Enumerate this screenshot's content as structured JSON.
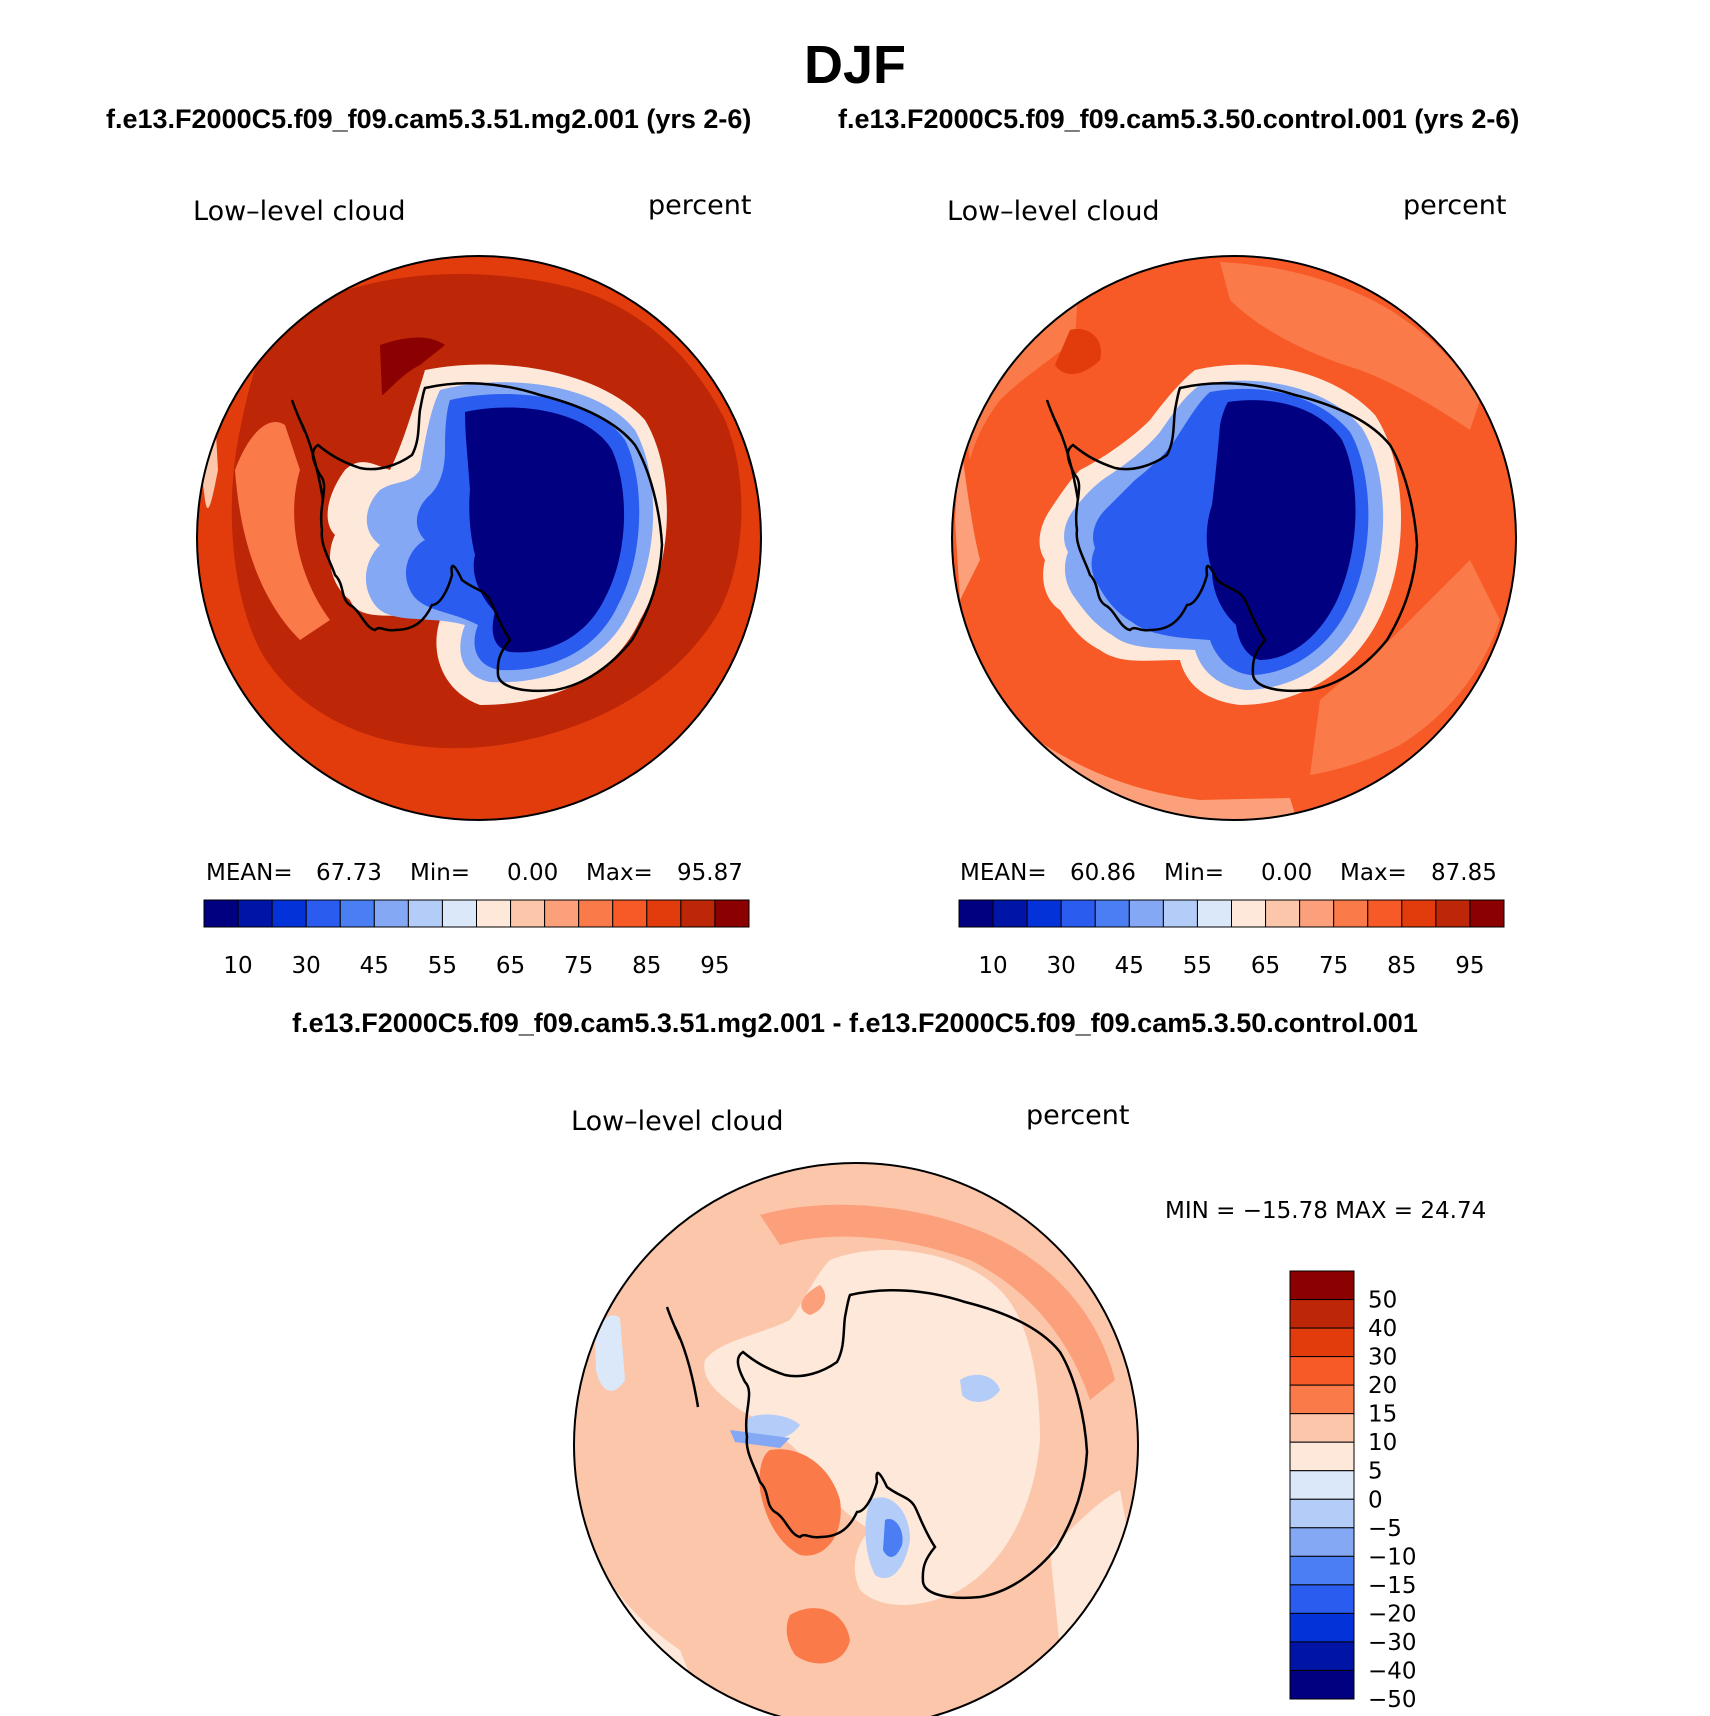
{
  "figure": {
    "season": "DJF",
    "case_title_left": "f.e13.F2000C5.f09_f09.cam5.3.51.mg2.001 (yrs 2-6)",
    "case_title_right": "f.e13.F2000C5.f09_f09.cam5.3.50.control.001 (yrs 2-6)",
    "diff_title": "f.e13.F2000C5.f09_f09.cam5.3.51.mg2.001 - f.e13.F2000C5.f09_f09.cam5.3.50.control.001"
  },
  "panels": {
    "left": {
      "variable": "Low–level cloud",
      "units": "percent",
      "mean_label": "MEAN=",
      "mean": "67.73",
      "min_label": "Min=",
      "min": "0.00",
      "max_label": "Max=",
      "max": "95.87"
    },
    "right": {
      "variable": "Low–level cloud",
      "units": "percent",
      "mean_label": "MEAN=",
      "mean": "60.86",
      "min_label": "Min=",
      "min": "0.00",
      "max_label": "Max=",
      "max": "87.85"
    },
    "diff": {
      "variable": "Low–level cloud",
      "units": "percent",
      "minmax_text": "MIN = −15.78 MAX =   24.74"
    }
  },
  "chart_data": [
    {
      "type": "heatmap",
      "projection": "south-polar-stereographic",
      "title": "Low–level cloud",
      "units": "percent",
      "case": "f.e13.F2000C5.f09_f09.cam5.3.51.mg2.001 (yrs 2-6)",
      "mean": 67.73,
      "min": 0.0,
      "max": 95.87,
      "levels": [
        5,
        10,
        20,
        30,
        40,
        45,
        50,
        55,
        60,
        65,
        70,
        75,
        80,
        85,
        90,
        95
      ],
      "colorbar_tick_labels": [
        "10",
        "30",
        "45",
        "55",
        "65",
        "75",
        "85",
        "95"
      ],
      "colors": [
        "#000080",
        "#0015a6",
        "#0432d9",
        "#2a5cf0",
        "#4a7ef2",
        "#85a8f5",
        "#b4ccf8",
        "#dbe8fa",
        "#fde8da",
        "#fcc6aa",
        "#fba07a",
        "#fa7a4a",
        "#f75a26",
        "#e23b0c",
        "#bd2606",
        "#8b0000"
      ]
    },
    {
      "type": "heatmap",
      "projection": "south-polar-stereographic",
      "title": "Low–level cloud",
      "units": "percent",
      "case": "f.e13.F2000C5.f09_f09.cam5.3.50.control.001 (yrs 2-6)",
      "mean": 60.86,
      "min": 0.0,
      "max": 87.85,
      "levels": [
        5,
        10,
        20,
        30,
        40,
        45,
        50,
        55,
        60,
        65,
        70,
        75,
        80,
        85,
        90,
        95
      ],
      "colorbar_tick_labels": [
        "10",
        "30",
        "45",
        "55",
        "65",
        "75",
        "85",
        "95"
      ],
      "colors": [
        "#000080",
        "#0015a6",
        "#0432d9",
        "#2a5cf0",
        "#4a7ef2",
        "#85a8f5",
        "#b4ccf8",
        "#dbe8fa",
        "#fde8da",
        "#fcc6aa",
        "#fba07a",
        "#fa7a4a",
        "#f75a26",
        "#e23b0c",
        "#bd2606",
        "#8b0000"
      ]
    },
    {
      "type": "heatmap",
      "projection": "south-polar-stereographic",
      "title": "Low–level cloud",
      "units": "percent",
      "case": "f.e13.F2000C5.f09_f09.cam5.3.51.mg2.001 - f.e13.F2000C5.f09_f09.cam5.3.50.control.001",
      "min": -15.78,
      "max": 24.74,
      "colorbar_tick_labels": [
        "50",
        "40",
        "30",
        "20",
        "15",
        "10",
        "5",
        "0",
        "−5",
        "−10",
        "−15",
        "−20",
        "−30",
        "−40",
        "−50"
      ],
      "colors": [
        "#8b0000",
        "#bd2606",
        "#e23b0c",
        "#f75a26",
        "#fa7a4a",
        "#fcc6aa",
        "#fde8da",
        "#dbe8fa",
        "#b4ccf8",
        "#85a8f5",
        "#4a7ef2",
        "#2a5cf0",
        "#0432d9",
        "#0015a6",
        "#000080"
      ]
    }
  ]
}
